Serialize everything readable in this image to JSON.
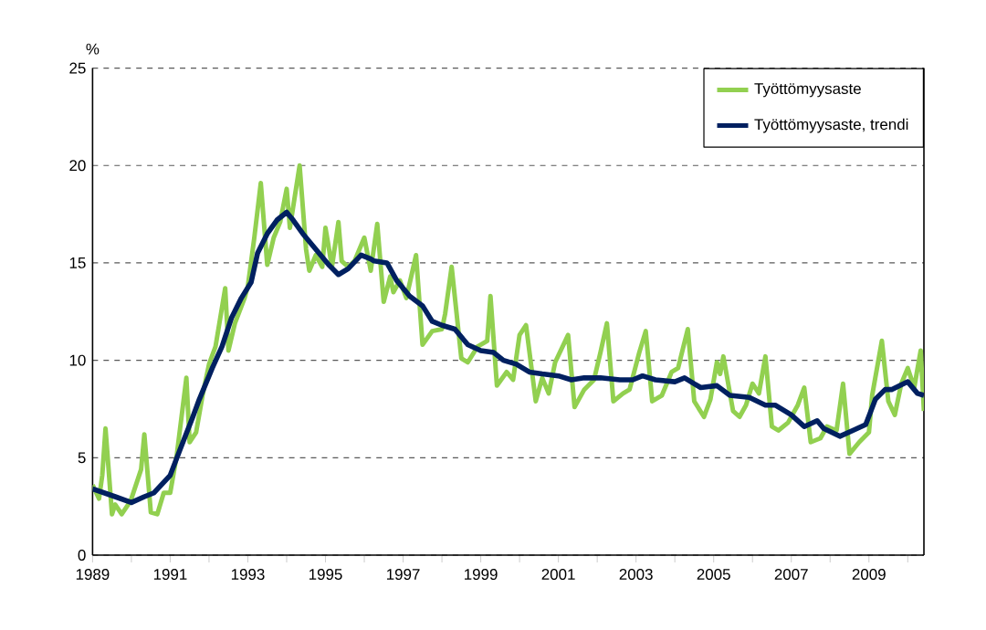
{
  "chart_data": {
    "type": "line",
    "ylabel": "%",
    "xlim": [
      "1989-01",
      "2010-06"
    ],
    "ylim": [
      0,
      25
    ],
    "yticks": [
      0,
      5,
      10,
      15,
      20,
      25
    ],
    "xticks": [
      "1989",
      {
        "value": "1990",
        "label": null
      },
      "1991",
      {
        "value": "1992",
        "label": null
      },
      "1993",
      {
        "value": "1994",
        "label": null
      },
      "1995",
      {
        "value": "1996",
        "label": null
      },
      "1997",
      {
        "value": "1998",
        "label": null
      },
      "1999",
      {
        "value": "2000",
        "label": null
      },
      "2001",
      {
        "value": "2002",
        "label": null
      },
      "2003",
      {
        "value": "2004",
        "label": null
      },
      "2005",
      {
        "value": "2006",
        "label": null
      },
      "2007",
      {
        "value": "2008",
        "label": null
      },
      "2009",
      {
        "value": "2010",
        "label": null
      }
    ],
    "grid": "y",
    "legend": "top right",
    "marker": "none",
    "line_style": "solid",
    "series": [
      {
        "name": "Työttömyysaste",
        "color": "#92d050",
        "x": [
          "1989-01",
          "1989-03",
          "1989-04",
          "1989-05",
          "1989-07",
          "1989-08",
          "1989-10",
          "1989-12",
          "1990-01",
          "1990-04",
          "1990-05",
          "1990-07",
          "1990-09",
          "1990-11",
          "1991-01",
          "1991-03",
          "1991-06",
          "1991-07",
          "1991-09",
          "1991-11",
          "1992-01",
          "1992-03",
          "1992-06",
          "1992-07",
          "1992-09",
          "1992-12",
          "1993-01",
          "1993-03",
          "1993-05",
          "1993-07",
          "1993-09",
          "1993-11",
          "1994-01",
          "1994-02",
          "1994-05",
          "1994-07",
          "1994-08",
          "1994-10",
          "1994-12",
          "1995-01",
          "1995-03",
          "1995-05",
          "1995-06",
          "1995-08",
          "1995-10",
          "1996-01",
          "1996-03",
          "1996-05",
          "1996-07",
          "1996-09",
          "1996-10",
          "1996-12",
          "1997-02",
          "1997-05",
          "1997-07",
          "1997-10",
          "1998-01",
          "1998-02",
          "1998-04",
          "1998-07",
          "1998-09",
          "1998-12",
          "1999-03",
          "1999-04",
          "1999-06",
          "1999-09",
          "1999-11",
          "2000-01",
          "2000-03",
          "2000-06",
          "2000-08",
          "2000-10",
          "2000-12",
          "2001-04",
          "2001-06",
          "2001-09",
          "2001-12",
          "2002-02",
          "2002-04",
          "2002-06",
          "2002-09",
          "2002-11",
          "2003-02",
          "2003-04",
          "2003-06",
          "2003-09",
          "2003-12",
          "2004-02",
          "2004-05",
          "2004-07",
          "2004-10",
          "2004-12",
          "2005-02",
          "2005-03",
          "2005-04",
          "2005-07",
          "2005-09",
          "2005-11",
          "2006-01",
          "2006-03",
          "2006-05",
          "2006-07",
          "2006-09",
          "2006-12",
          "2007-03",
          "2007-05",
          "2007-07",
          "2007-10",
          "2007-12",
          "2008-03",
          "2008-05",
          "2008-07",
          "2008-10",
          "2009-01",
          "2009-02",
          "2009-05",
          "2009-07",
          "2009-09",
          "2009-11",
          "2010-01",
          "2010-03",
          "2010-05",
          "2010-06"
        ],
        "values": [
          3.6,
          2.9,
          4.1,
          6.5,
          2.1,
          2.6,
          2.1,
          2.6,
          2.9,
          4.4,
          6.2,
          2.2,
          2.1,
          3.2,
          3.2,
          5.1,
          9.1,
          5.8,
          6.3,
          8.2,
          9.8,
          10.7,
          13.7,
          10.5,
          11.9,
          13.2,
          13.8,
          16.3,
          19.1,
          14.9,
          16.3,
          17.1,
          18.8,
          16.8,
          20.0,
          15.7,
          14.6,
          15.4,
          14.8,
          16.8,
          14.8,
          17.1,
          15.1,
          14.8,
          15.1,
          16.3,
          14.6,
          17.0,
          13.0,
          14.3,
          13.5,
          14.1,
          13.2,
          15.4,
          10.8,
          11.5,
          11.6,
          12.4,
          14.8,
          10.1,
          9.9,
          10.7,
          11.0,
          13.3,
          8.7,
          9.4,
          9.0,
          11.3,
          11.8,
          7.9,
          9.1,
          8.3,
          9.9,
          11.3,
          7.6,
          8.5,
          9.0,
          10.4,
          11.9,
          7.9,
          8.3,
          8.5,
          10.4,
          11.5,
          7.9,
          8.2,
          9.4,
          9.6,
          11.6,
          7.9,
          7.1,
          8.0,
          9.9,
          9.3,
          10.2,
          7.4,
          7.1,
          7.7,
          8.8,
          8.3,
          10.2,
          6.6,
          6.4,
          6.8,
          7.7,
          8.6,
          5.8,
          6.0,
          6.6,
          6.4,
          8.8,
          5.2,
          5.8,
          6.3,
          8.2,
          11.0,
          7.9,
          7.2,
          8.8,
          9.6,
          8.6,
          10.5,
          7.4
        ]
      },
      {
        "name": "Työttömyysaste, trendi",
        "color": "#002060",
        "x": [
          "1989-01",
          "1989-08",
          "1990-01",
          "1990-05",
          "1990-08",
          "1991-01",
          "1991-04",
          "1991-08",
          "1991-10",
          "1992-02",
          "1992-05",
          "1992-08",
          "1992-11",
          "1993-02",
          "1993-04",
          "1993-07",
          "1993-10",
          "1994-01",
          "1994-03",
          "1994-06",
          "1994-10",
          "1995-02",
          "1995-05",
          "1995-08",
          "1995-12",
          "1996-03",
          "1996-04",
          "1996-08",
          "1996-11",
          "1997-03",
          "1997-07",
          "1997-10",
          "1998-01",
          "1998-05",
          "1998-09",
          "1999-01",
          "1999-05",
          "1999-08",
          "1999-12",
          "2000-04",
          "2000-08",
          "2001-01",
          "2001-05",
          "2001-09",
          "2002-02",
          "2002-08",
          "2002-12",
          "2003-03",
          "2003-07",
          "2004-01",
          "2004-04",
          "2004-09",
          "2005-02",
          "2005-06",
          "2005-12",
          "2006-05",
          "2006-08",
          "2007-01",
          "2007-05",
          "2007-09",
          "2007-11",
          "2008-04",
          "2008-08",
          "2008-12",
          "2009-03",
          "2009-06",
          "2009-08",
          "2010-01",
          "2010-04",
          "2010-06"
        ],
        "values": [
          3.4,
          3.0,
          2.7,
          3.0,
          3.2,
          4.1,
          5.4,
          7.1,
          8.0,
          9.6,
          10.7,
          12.2,
          13.2,
          14.0,
          15.5,
          16.5,
          17.2,
          17.6,
          17.2,
          16.5,
          15.7,
          14.9,
          14.4,
          14.7,
          15.4,
          15.2,
          15.1,
          15.0,
          14.1,
          13.3,
          12.8,
          12.0,
          11.8,
          11.6,
          10.8,
          10.5,
          10.4,
          10.0,
          9.8,
          9.4,
          9.3,
          9.2,
          9.0,
          9.1,
          9.1,
          9.0,
          9.0,
          9.2,
          9.0,
          8.9,
          9.1,
          8.6,
          8.7,
          8.2,
          8.1,
          7.7,
          7.7,
          7.2,
          6.6,
          6.9,
          6.5,
          6.1,
          6.4,
          6.7,
          8.0,
          8.5,
          8.5,
          8.9,
          8.3,
          8.2
        ]
      }
    ]
  }
}
